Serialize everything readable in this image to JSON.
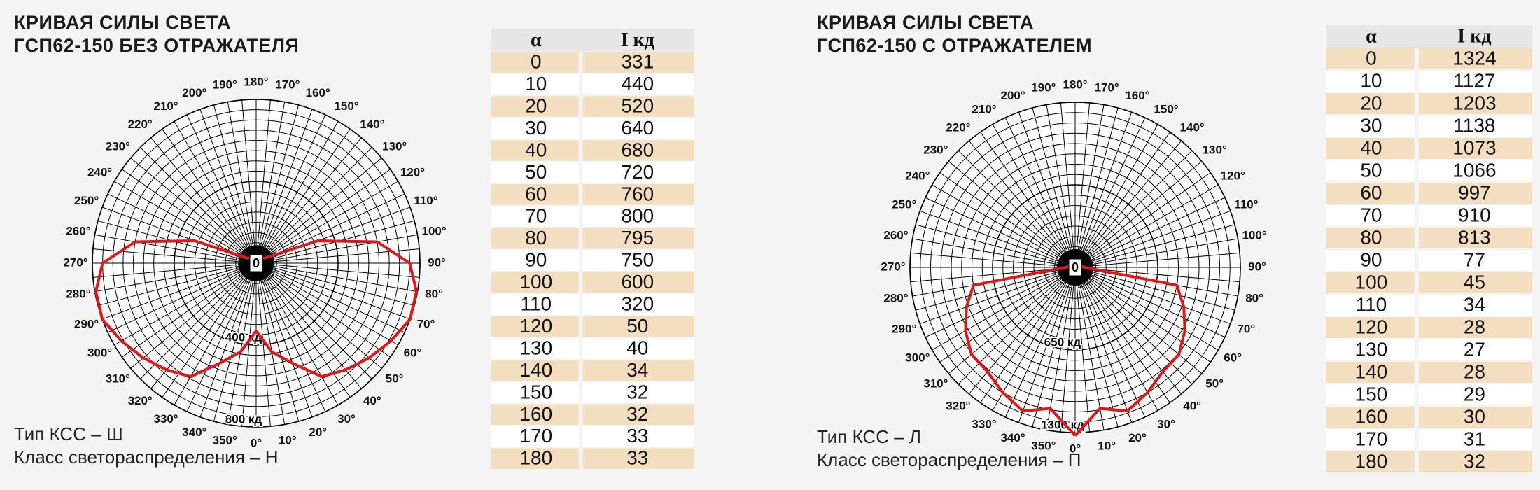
{
  "panels": [
    {
      "title": [
        "КРИВАЯ СИЛЫ СВЕТА",
        "ГСП62-150 БЕЗ ОТРАЖАТЕЛЯ"
      ],
      "notes": [
        "Тип КСС – Ш",
        "Класс светораспределения – Н"
      ],
      "center_label": "0",
      "rlim": [
        0,
        800
      ],
      "rticks": [
        {
          "value": 400,
          "label": "400 кд"
        },
        {
          "value": 800,
          "label": "800 кд"
        }
      ],
      "angles": [
        {
          "value": 0,
          "label": "0°"
        },
        {
          "value": 10,
          "label": "10°"
        },
        {
          "value": 20,
          "label": "20°"
        },
        {
          "value": 30,
          "label": "30°"
        },
        {
          "value": 40,
          "label": "40°"
        },
        {
          "value": 50,
          "label": "50°"
        },
        {
          "value": 60,
          "label": "60°"
        },
        {
          "value": 70,
          "label": "70°"
        },
        {
          "value": 80,
          "label": "80°"
        },
        {
          "value": 90,
          "label": "90°"
        },
        {
          "value": 100,
          "label": "100°"
        },
        {
          "value": 110,
          "label": "110°"
        },
        {
          "value": 120,
          "label": "120°"
        },
        {
          "value": 130,
          "label": "130°"
        },
        {
          "value": 140,
          "label": "140°"
        },
        {
          "value": 150,
          "label": "150°"
        },
        {
          "value": 160,
          "label": "160°"
        },
        {
          "value": 170,
          "label": "170°"
        },
        {
          "value": 180,
          "label": "180°"
        },
        {
          "value": 190,
          "label": "190°"
        },
        {
          "value": 200,
          "label": "200°"
        },
        {
          "value": 210,
          "label": "210°"
        },
        {
          "value": 220,
          "label": "220°"
        },
        {
          "value": 230,
          "label": "230°"
        },
        {
          "value": 240,
          "label": "240°"
        },
        {
          "value": 250,
          "label": "250°"
        },
        {
          "value": 260,
          "label": "260°"
        },
        {
          "value": 270,
          "label": "270°"
        },
        {
          "value": 280,
          "label": "280°"
        },
        {
          "value": 290,
          "label": "290°"
        },
        {
          "value": 300,
          "label": "300°"
        },
        {
          "value": 310,
          "label": "310°"
        },
        {
          "value": 320,
          "label": "320°"
        },
        {
          "value": 330,
          "label": "330°"
        },
        {
          "value": 340,
          "label": "340°"
        },
        {
          "value": 350,
          "label": "350°"
        }
      ],
      "curve_color": "#e3161b",
      "table": {
        "header": [
          "α",
          "I кд"
        ],
        "rows": [
          [
            0,
            331
          ],
          [
            10,
            440
          ],
          [
            20,
            520
          ],
          [
            30,
            640
          ],
          [
            40,
            680
          ],
          [
            50,
            720
          ],
          [
            60,
            760
          ],
          [
            70,
            800
          ],
          [
            80,
            795
          ],
          [
            90,
            750
          ],
          [
            100,
            600
          ],
          [
            110,
            320
          ],
          [
            120,
            50
          ],
          [
            130,
            40
          ],
          [
            140,
            34
          ],
          [
            150,
            32
          ],
          [
            160,
            32
          ],
          [
            170,
            33
          ],
          [
            180,
            33
          ]
        ]
      }
    },
    {
      "title": [
        "КРИВАЯ СИЛЫ СВЕТА",
        "ГСП62-150 С ОТРАЖАТЕЛЕМ"
      ],
      "notes": [
        "Тип КСС – Л",
        "Класс светораспределения – П"
      ],
      "center_label": "0",
      "rlim": [
        0,
        1300
      ],
      "rticks": [
        {
          "value": 650,
          "label": "650 кд"
        },
        {
          "value": 1300,
          "label": "1300 кд"
        }
      ],
      "angles": [
        {
          "value": 0,
          "label": "0°"
        },
        {
          "value": 10,
          "label": "10°"
        },
        {
          "value": 20,
          "label": "20°"
        },
        {
          "value": 30,
          "label": "30°"
        },
        {
          "value": 40,
          "label": "40°"
        },
        {
          "value": 50,
          "label": "50°"
        },
        {
          "value": 60,
          "label": "60°"
        },
        {
          "value": 70,
          "label": "70°"
        },
        {
          "value": 80,
          "label": "80°"
        },
        {
          "value": 90,
          "label": "90°"
        },
        {
          "value": 100,
          "label": "100°"
        },
        {
          "value": 110,
          "label": "110°"
        },
        {
          "value": 120,
          "label": "120°"
        },
        {
          "value": 130,
          "label": "130°"
        },
        {
          "value": 140,
          "label": "140°"
        },
        {
          "value": 150,
          "label": "150°"
        },
        {
          "value": 160,
          "label": "160°"
        },
        {
          "value": 170,
          "label": "170°"
        },
        {
          "value": 180,
          "label": "180°"
        },
        {
          "value": 190,
          "label": "190°"
        },
        {
          "value": 200,
          "label": "200°"
        },
        {
          "value": 210,
          "label": "210°"
        },
        {
          "value": 220,
          "label": "220°"
        },
        {
          "value": 230,
          "label": "230°"
        },
        {
          "value": 240,
          "label": "240°"
        },
        {
          "value": 250,
          "label": "250°"
        },
        {
          "value": 260,
          "label": "260°"
        },
        {
          "value": 270,
          "label": "270°"
        },
        {
          "value": 280,
          "label": "280°"
        },
        {
          "value": 290,
          "label": "290°"
        },
        {
          "value": 300,
          "label": "300°"
        },
        {
          "value": 310,
          "label": "310°"
        },
        {
          "value": 320,
          "label": "320°"
        },
        {
          "value": 330,
          "label": "330°"
        },
        {
          "value": 340,
          "label": "340°"
        },
        {
          "value": 350,
          "label": "350°"
        }
      ],
      "curve_color": "#e3161b",
      "table": {
        "header": [
          "α",
          "I кд"
        ],
        "rows": [
          [
            0,
            1324
          ],
          [
            10,
            1127
          ],
          [
            20,
            1203
          ],
          [
            30,
            1138
          ],
          [
            40,
            1073
          ],
          [
            50,
            1066
          ],
          [
            60,
            997
          ],
          [
            70,
            910
          ],
          [
            80,
            813
          ],
          [
            90,
            77
          ],
          [
            100,
            45
          ],
          [
            110,
            34
          ],
          [
            120,
            28
          ],
          [
            130,
            27
          ],
          [
            140,
            28
          ],
          [
            150,
            29
          ],
          [
            160,
            30
          ],
          [
            170,
            31
          ],
          [
            180,
            32
          ]
        ]
      }
    }
  ]
}
